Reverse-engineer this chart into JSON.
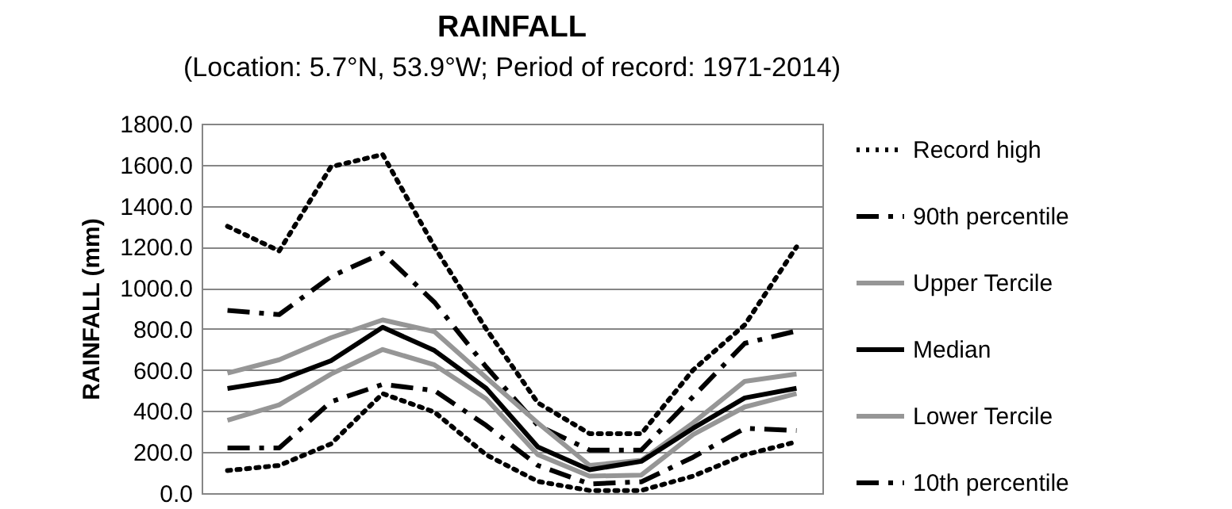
{
  "chart_data": {
    "type": "line",
    "title": "RAINFALL",
    "subtitle": "(Location: 5.7°N, 53.9°W; Period of record: 1971-2014)",
    "ylabel": "RAINFALL (mm)",
    "categories": [
      null,
      null,
      null,
      null,
      null,
      null,
      null,
      null,
      null,
      null,
      null,
      null
    ],
    "series": [
      {
        "name": "Record high",
        "color": "#000000",
        "line_style": "dotted",
        "values": [
          1300,
          1180,
          1590,
          1650,
          1200,
          800,
          440,
          290,
          290,
          600,
          820,
          1200
        ]
      },
      {
        "name": "90th percentile",
        "color": "#000000",
        "line_style": "dashed",
        "values": [
          890,
          870,
          1055,
          1170,
          930,
          615,
          330,
          210,
          210,
          470,
          730,
          790
        ]
      },
      {
        "name": "Upper Tercile",
        "color": "#969696",
        "line_style": "solid",
        "values": [
          585,
          650,
          757,
          844,
          787,
          563,
          342,
          135,
          160,
          342,
          545,
          580
        ]
      },
      {
        "name": "Median",
        "color": "#000000",
        "line_style": "solid",
        "values": [
          510,
          550,
          645,
          808,
          695,
          511,
          225,
          114,
          155,
          316,
          464,
          511
        ]
      },
      {
        "name": "Lower Tercile",
        "color": "#969696",
        "line_style": "solid",
        "values": [
          355,
          430,
          580,
          700,
          625,
          460,
          187,
          83,
          88,
          285,
          420,
          485
        ]
      },
      {
        "name": "10th percentile",
        "color": "#000000",
        "line_style": "dashed",
        "values": [
          220,
          220,
          445,
          530,
          500,
          330,
          135,
          45,
          55,
          175,
          316,
          305
        ]
      },
      {
        "color": "#000000",
        "line_style": "dotted",
        "values": [
          110,
          135,
          240,
          485,
          395,
          187,
          57,
          13,
          13,
          83,
          187,
          250
        ]
      }
    ],
    "ylim": [
      0,
      1800
    ],
    "yticks": [
      {
        "value": 0,
        "label": "0.0"
      },
      {
        "value": 200,
        "label": "200.0"
      },
      {
        "value": 400,
        "label": "400.0"
      },
      {
        "value": 600,
        "label": "600.0"
      },
      {
        "value": 800,
        "label": "800.0"
      },
      {
        "value": 1000,
        "label": "1000.0"
      },
      {
        "value": 1200,
        "label": "1200.0"
      },
      {
        "value": 1400,
        "label": "1400.0"
      },
      {
        "value": 1600,
        "label": "1600.0"
      },
      {
        "value": 1800,
        "label": "1800.0"
      }
    ],
    "grid": "y",
    "legend": "right",
    "tick_labels": "y"
  }
}
